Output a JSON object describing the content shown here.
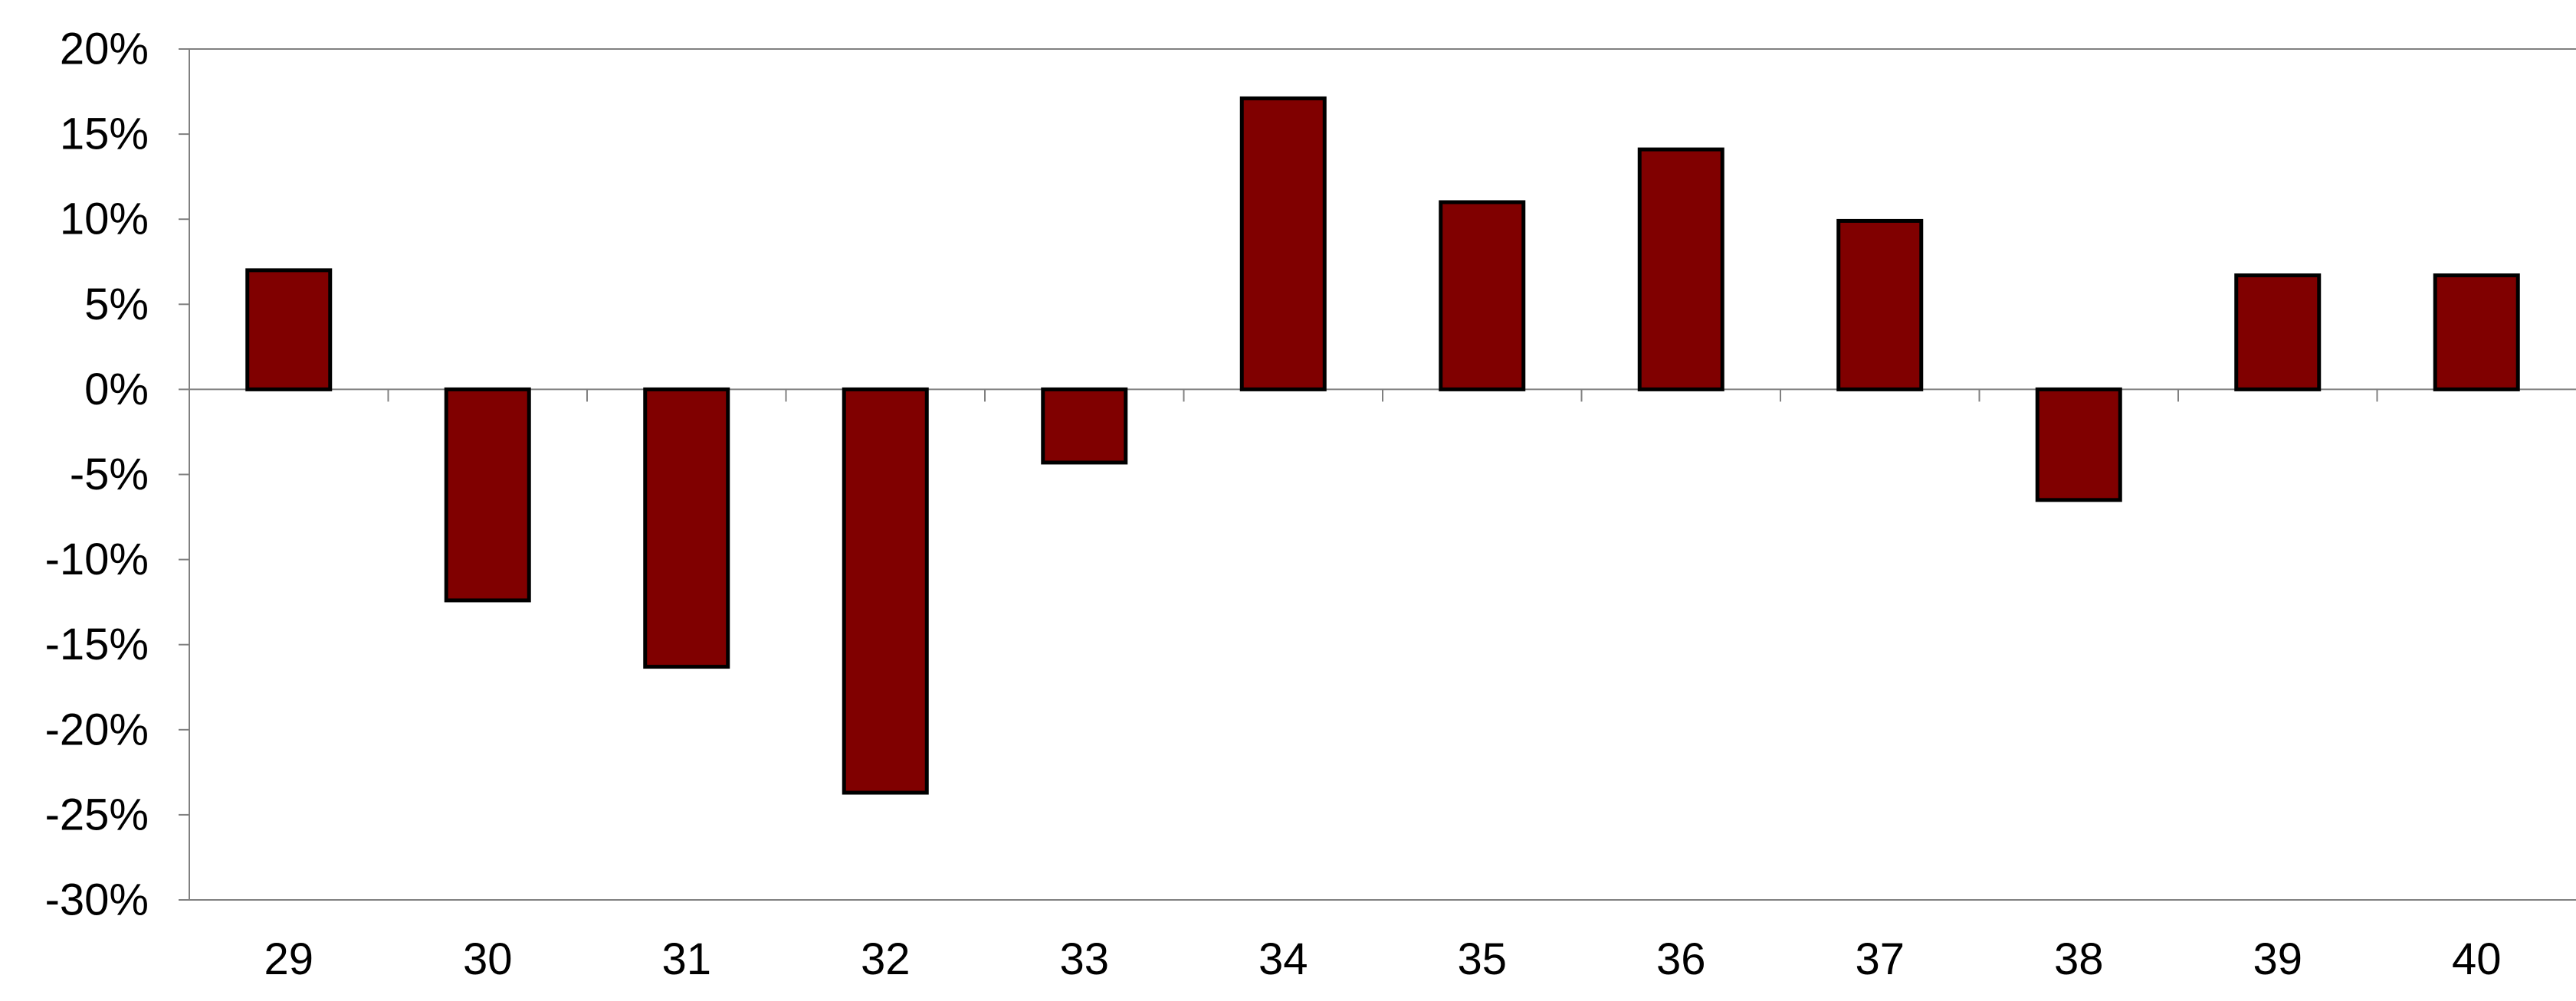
{
  "chart_data": {
    "type": "bar",
    "categories": [
      "29",
      "30",
      "31",
      "32",
      "33",
      "34",
      "35",
      "36",
      "37",
      "38",
      "39",
      "40"
    ],
    "series": [
      {
        "values": [
          7,
          -12.4,
          -16.3,
          -23.7,
          -4.3,
          17.1,
          11,
          14.1,
          9.9,
          -6.5,
          6.7,
          6.7
        ]
      }
    ],
    "ylim": [
      -30,
      20
    ],
    "yticks": [
      20,
      15,
      10,
      5,
      0,
      -5,
      -10,
      -15,
      -20,
      -25,
      -30
    ],
    "ytick_labels": [
      "20%",
      "15%",
      "10%",
      "5%",
      "0%",
      "-5%",
      "-10%",
      "-15%",
      "-20%",
      "-25%",
      "-30%"
    ],
    "title": "",
    "xlabel": "",
    "ylabel": "",
    "grid": false,
    "legend": "none",
    "colors": {
      "bar_fill": "#800000",
      "bar_stroke": "#000000",
      "axis": "#808080"
    }
  }
}
